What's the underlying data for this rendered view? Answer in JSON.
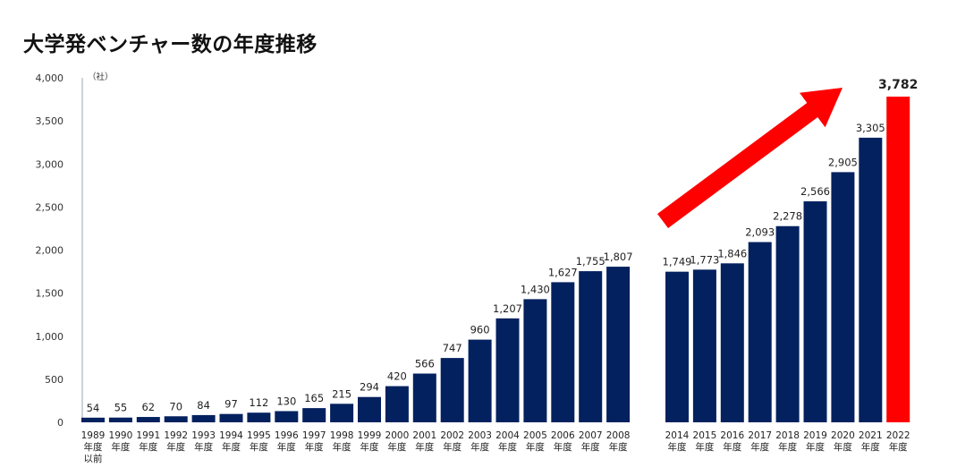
{
  "title": "大学発ベンチャー数の年度推移",
  "colors": {
    "bar": "#03215f",
    "highlight": "#ff0000",
    "arrow": "#ff0000"
  },
  "chart_data": {
    "type": "bar",
    "unit_label": "（社）",
    "ylim": [
      0,
      4000
    ],
    "yticks": [
      0,
      500,
      1000,
      1500,
      2000,
      2500,
      3000,
      3500,
      4000
    ],
    "ytick_labels": [
      "0",
      "500",
      "1,000",
      "1,500",
      "2,000",
      "2,500",
      "3,000",
      "3,500",
      "4,000"
    ],
    "grid": false,
    "legend": "none",
    "annotation": "red upward arrow toward 2022",
    "categories": [
      [
        "1989",
        "年度",
        "以前"
      ],
      [
        "1990",
        "年度"
      ],
      [
        "1991",
        "年度"
      ],
      [
        "1992",
        "年度"
      ],
      [
        "1993",
        "年度"
      ],
      [
        "1994",
        "年度"
      ],
      [
        "1995",
        "年度"
      ],
      [
        "1996",
        "年度"
      ],
      [
        "1997",
        "年度"
      ],
      [
        "1998",
        "年度"
      ],
      [
        "1999",
        "年度"
      ],
      [
        "2000",
        "年度"
      ],
      [
        "2001",
        "年度"
      ],
      [
        "2002",
        "年度"
      ],
      [
        "2003",
        "年度"
      ],
      [
        "2004",
        "年度"
      ],
      [
        "2005",
        "年度"
      ],
      [
        "2006",
        "年度"
      ],
      [
        "2007",
        "年度"
      ],
      [
        "2008",
        "年度"
      ],
      [
        "2014",
        "年度"
      ],
      [
        "2015",
        "年度"
      ],
      [
        "2016",
        "年度"
      ],
      [
        "2017",
        "年度"
      ],
      [
        "2018",
        "年度"
      ],
      [
        "2019",
        "年度"
      ],
      [
        "2020",
        "年度"
      ],
      [
        "2021",
        "年度"
      ],
      [
        "2022",
        "年度"
      ]
    ],
    "values": [
      54,
      55,
      62,
      70,
      84,
      97,
      112,
      130,
      165,
      215,
      294,
      420,
      566,
      747,
      960,
      1207,
      1430,
      1627,
      1755,
      1807,
      1749,
      1773,
      1846,
      2093,
      2278,
      2566,
      2905,
      3305,
      3782
    ],
    "value_labels": [
      "54",
      "55",
      "62",
      "70",
      "84",
      "97",
      "112",
      "130",
      "165",
      "215",
      "294",
      "420",
      "566",
      "747",
      "960",
      "1,207",
      "1,430",
      "1,627",
      "1,755",
      "1,807",
      "1,749",
      "1,773",
      "1,846",
      "2,093",
      "2,278",
      "2,566",
      "2,905",
      "3,305",
      "3,782"
    ],
    "highlight_index": 28
  }
}
